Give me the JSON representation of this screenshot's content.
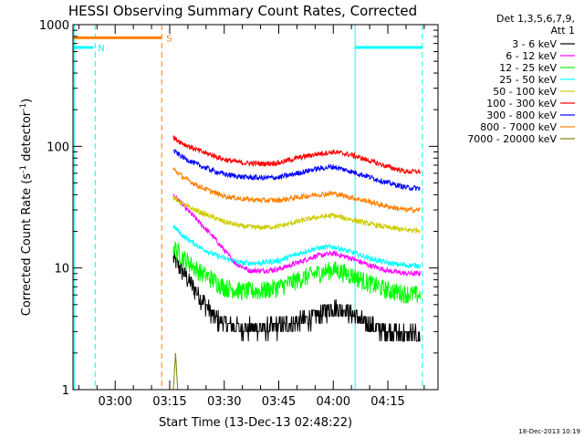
{
  "chart_data": {
    "type": "line",
    "title": "HESSI Observing Summary Count Rates, Corrected",
    "xlabel": "Start Time (13-Dec-13 02:48:22)",
    "ylabel_main": "Corrected Count Rate (s",
    "ylabel_sup": "-1",
    "ylabel_tail": " detector",
    "ylabel_sup2": "-1",
    "ylabel_close": ")",
    "y_scale": "log",
    "ylim": [
      1,
      1000
    ],
    "xlim_minutes": [
      168.4,
      268.8
    ],
    "y_ticks": [
      "1",
      "10",
      "100",
      "1000"
    ],
    "x_ticks": [
      {
        "label": "03:00",
        "min": 180
      },
      {
        "label": "03:15",
        "min": 195
      },
      {
        "label": "03:30",
        "min": 210
      },
      {
        "label": "03:45",
        "min": 225
      },
      {
        "label": "04:00",
        "min": 240
      },
      {
        "label": "04:15",
        "min": 255
      }
    ],
    "legend_header": [
      "Det 1,3,5,6,7,9,",
      "Att 1"
    ],
    "series": [
      {
        "name": "3 - 6 keV",
        "color": "#000000",
        "points": [
          [
            196,
            12
          ],
          [
            199,
            9
          ],
          [
            203,
            6
          ],
          [
            207,
            4
          ],
          [
            210,
            3.5
          ],
          [
            215,
            3.2
          ],
          [
            220,
            3.2
          ],
          [
            225,
            3.3
          ],
          [
            230,
            3.6
          ],
          [
            235,
            4.0
          ],
          [
            240,
            4.8
          ],
          [
            243,
            4.6
          ],
          [
            246,
            4.0
          ],
          [
            250,
            3.4
          ],
          [
            255,
            3.0
          ],
          [
            260,
            2.9
          ],
          [
            264,
            2.8
          ]
        ]
      },
      {
        "name": "6 - 12 keV",
        "color": "#ff00ff",
        "points": [
          [
            196,
            40
          ],
          [
            199,
            32
          ],
          [
            203,
            24
          ],
          [
            207,
            18
          ],
          [
            210,
            14
          ],
          [
            213,
            11
          ],
          [
            217,
            9.5
          ],
          [
            221,
            9.5
          ],
          [
            225,
            9.8
          ],
          [
            230,
            11
          ],
          [
            235,
            12.5
          ],
          [
            240,
            13.2
          ],
          [
            245,
            12
          ],
          [
            250,
            10.5
          ],
          [
            255,
            9.5
          ],
          [
            260,
            9.0
          ],
          [
            264,
            9.0
          ]
        ]
      },
      {
        "name": "12 - 25 keV",
        "color": "#00ff00",
        "points": [
          [
            196,
            15
          ],
          [
            199,
            12
          ],
          [
            203,
            9.5
          ],
          [
            207,
            8
          ],
          [
            210,
            7
          ],
          [
            215,
            6.5
          ],
          [
            220,
            6.5
          ],
          [
            225,
            7.0
          ],
          [
            230,
            8.0
          ],
          [
            235,
            9.0
          ],
          [
            240,
            9.8
          ],
          [
            245,
            8.8
          ],
          [
            250,
            7.5
          ],
          [
            255,
            6.6
          ],
          [
            260,
            6.2
          ],
          [
            264,
            6.0
          ]
        ]
      },
      {
        "name": "25 - 50 keV",
        "color": "#00ffff",
        "points": [
          [
            196,
            22
          ],
          [
            199,
            18
          ],
          [
            203,
            15
          ],
          [
            207,
            13
          ],
          [
            210,
            12
          ],
          [
            215,
            11
          ],
          [
            220,
            11
          ],
          [
            225,
            11.5
          ],
          [
            230,
            13
          ],
          [
            235,
            14.5
          ],
          [
            240,
            15
          ],
          [
            245,
            13.5
          ],
          [
            250,
            12
          ],
          [
            255,
            11
          ],
          [
            260,
            10.5
          ],
          [
            264,
            10.5
          ]
        ]
      },
      {
        "name": "50 - 100 keV",
        "color": "#cccc00",
        "points": [
          [
            196,
            38
          ],
          [
            199,
            33
          ],
          [
            203,
            29
          ],
          [
            207,
            26
          ],
          [
            210,
            24
          ],
          [
            215,
            22
          ],
          [
            220,
            21.5
          ],
          [
            225,
            22
          ],
          [
            230,
            24
          ],
          [
            235,
            26
          ],
          [
            240,
            27
          ],
          [
            245,
            25
          ],
          [
            250,
            23
          ],
          [
            255,
            21.5
          ],
          [
            260,
            20.5
          ],
          [
            264,
            20.5
          ]
        ]
      },
      {
        "name": "100 - 300 keV",
        "color": "#ff0000",
        "points": [
          [
            196,
            118
          ],
          [
            199,
            104
          ],
          [
            203,
            92
          ],
          [
            207,
            84
          ],
          [
            210,
            78
          ],
          [
            215,
            73
          ],
          [
            220,
            72
          ],
          [
            225,
            73
          ],
          [
            230,
            80
          ],
          [
            235,
            86
          ],
          [
            240,
            90
          ],
          [
            245,
            85
          ],
          [
            250,
            76
          ],
          [
            255,
            68
          ],
          [
            260,
            62
          ],
          [
            264,
            62
          ]
        ]
      },
      {
        "name": "300 - 800 keV",
        "color": "#0000ff",
        "points": [
          [
            196,
            92
          ],
          [
            199,
            80
          ],
          [
            203,
            70
          ],
          [
            207,
            63
          ],
          [
            210,
            59
          ],
          [
            215,
            56
          ],
          [
            220,
            55
          ],
          [
            225,
            55.5
          ],
          [
            230,
            60
          ],
          [
            235,
            65
          ],
          [
            240,
            68
          ],
          [
            245,
            62
          ],
          [
            250,
            56
          ],
          [
            255,
            50
          ],
          [
            260,
            46
          ],
          [
            264,
            45
          ]
        ]
      },
      {
        "name": "800 - 7000 keV",
        "color": "#ff8000",
        "points": [
          [
            196,
            65
          ],
          [
            199,
            55
          ],
          [
            203,
            47
          ],
          [
            207,
            42
          ],
          [
            210,
            39
          ],
          [
            215,
            37
          ],
          [
            220,
            36
          ],
          [
            225,
            36
          ],
          [
            230,
            38
          ],
          [
            235,
            40
          ],
          [
            240,
            41
          ],
          [
            245,
            38
          ],
          [
            250,
            35
          ],
          [
            255,
            32
          ],
          [
            260,
            30
          ],
          [
            264,
            30
          ]
        ]
      },
      {
        "name": "7000 - 20000 keV",
        "color": "#808000",
        "points": [
          [
            196,
            1.0
          ],
          [
            196.6,
            2.0
          ],
          [
            197.2,
            1.0
          ]
        ]
      }
    ],
    "flags": [
      {
        "label": "N",
        "color": "#00ffff",
        "level": 650,
        "segments": [
          [
            168.4,
            174
          ],
          [
            246,
            264.5
          ]
        ]
      },
      {
        "label": "S",
        "color": "#ff8000",
        "level": 780,
        "segments": [
          [
            168.4,
            192.8
          ]
        ]
      }
    ],
    "vlines": [
      {
        "min": 168.7,
        "color": "#00ffff",
        "style": "solid"
      },
      {
        "min": 174.5,
        "color": "#00ffff",
        "style": "dashed"
      },
      {
        "min": 192.8,
        "color": "#ff8000",
        "style": "dashed"
      },
      {
        "min": 246.0,
        "color": "#00ffff",
        "style": "solid"
      },
      {
        "min": 264.5,
        "color": "#00ffff",
        "style": "dashed"
      }
    ],
    "grid": false,
    "legend_position": "right"
  },
  "footer": {
    "timestamp": "18-Dec-2013 10:19"
  }
}
